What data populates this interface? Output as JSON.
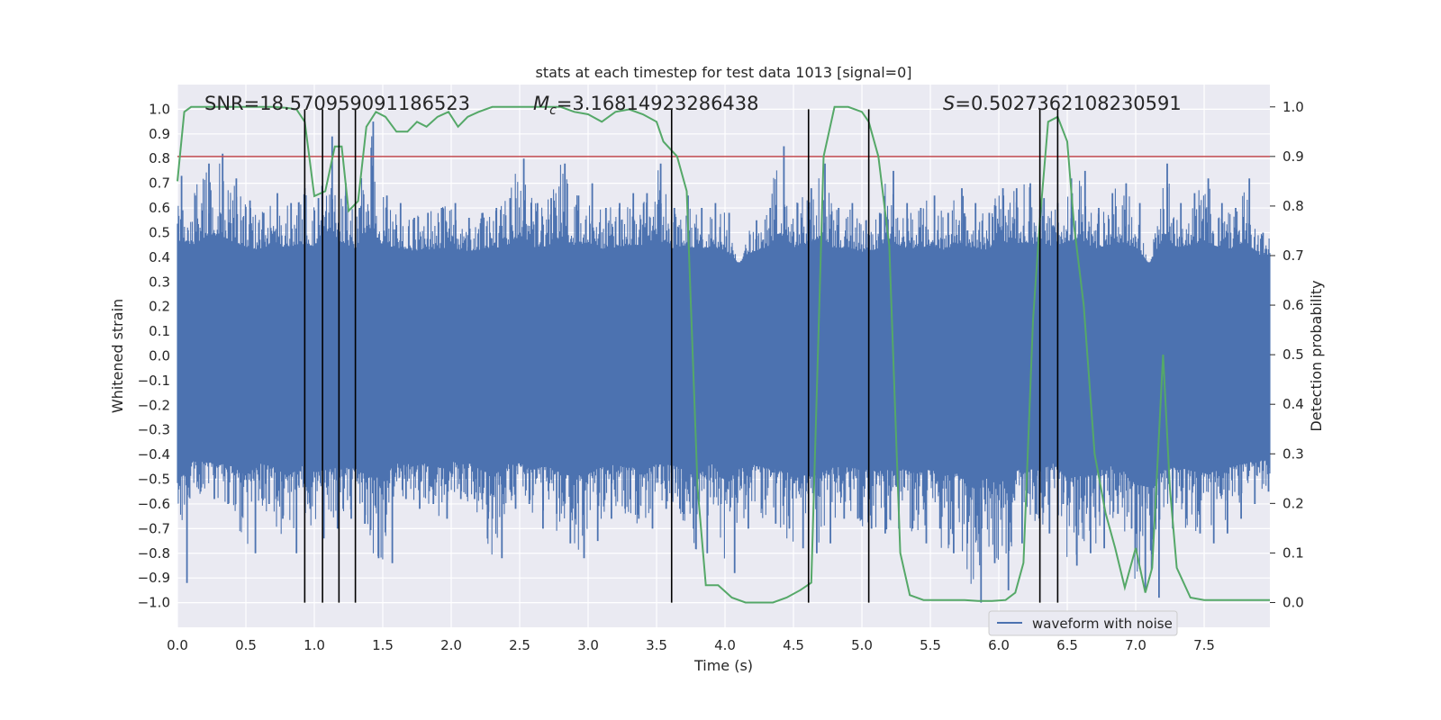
{
  "chart_data": {
    "type": "line",
    "title": "stats at each timestep for test data 1013 [signal=0]",
    "xlabel": "Time (s)",
    "ylabel": "Whitened strain",
    "y2label": "Detection probability",
    "xlim": [
      0.0,
      7.98
    ],
    "ylim": [
      -1.1,
      1.1
    ],
    "y2lim": [
      -0.05,
      1.045
    ],
    "xticks": [
      0.0,
      0.5,
      1.0,
      1.5,
      2.0,
      2.5,
      3.0,
      3.5,
      4.0,
      4.5,
      5.0,
      5.5,
      6.0,
      6.5,
      7.0,
      7.5
    ],
    "yticks": [
      -1.0,
      -0.9,
      -0.8,
      -0.7,
      -0.6,
      -0.5,
      -0.4,
      -0.3,
      -0.2,
      -0.1,
      0.0,
      0.1,
      0.2,
      0.3,
      0.4,
      0.5,
      0.6,
      0.7,
      0.8,
      0.9,
      1.0
    ],
    "y2ticks": [
      0.0,
      0.1,
      0.2,
      0.3,
      0.4,
      0.5,
      0.6,
      0.7,
      0.8,
      0.9,
      1.0
    ],
    "xtick_labels": [
      "0.0",
      "0.5",
      "1.0",
      "1.5",
      "2.0",
      "2.5",
      "3.0",
      "3.5",
      "4.0",
      "4.5",
      "5.0",
      "5.5",
      "6.0",
      "6.5",
      "7.0",
      "7.5"
    ],
    "ytick_labels": [
      "−1.0",
      "−0.9",
      "−0.8",
      "−0.7",
      "−0.6",
      "−0.5",
      "−0.4",
      "−0.3",
      "−0.2",
      "−0.1",
      "0.0",
      "0.1",
      "0.2",
      "0.3",
      "0.4",
      "0.5",
      "0.6",
      "0.7",
      "0.8",
      "0.9",
      "1.0"
    ],
    "y2tick_labels": [
      "0.0",
      "0.1",
      "0.2",
      "0.3",
      "0.4",
      "0.5",
      "0.6",
      "0.7",
      "0.8",
      "0.9",
      "1.0"
    ],
    "grid": true,
    "legend": {
      "position": "bottom-right",
      "entries": [
        "waveform with noise"
      ]
    },
    "annotations": {
      "snr": "SNR=18.570959091186523",
      "mc_symbol": "M",
      "mc_sub": "c",
      "mc_value": "=3.16814923286438",
      "s_symbol": "S",
      "s_value": "=0.5027362108230591"
    },
    "threshold": {
      "axis": "y2",
      "value": 0.9,
      "color": "#c44e52"
    },
    "vlines": {
      "x": [
        0.93,
        1.06,
        1.18,
        1.3,
        3.61,
        4.61,
        5.05,
        6.3,
        6.43
      ],
      "ymin": -1.0,
      "ymax": 1.0,
      "color": "#000000"
    },
    "series": [
      {
        "name": "waveform with noise",
        "axis": "y",
        "color": "#4c72b0",
        "envelope": {
          "x": [
            0.0,
            0.1,
            0.2,
            0.3,
            0.4,
            0.5,
            0.6,
            0.7,
            0.8,
            0.9,
            1.0,
            1.1,
            1.2,
            1.3,
            1.4,
            1.5,
            1.6,
            1.7,
            1.8,
            1.9,
            2.0,
            2.1,
            2.2,
            2.3,
            2.4,
            2.5,
            2.6,
            2.7,
            2.8,
            2.9,
            3.0,
            3.1,
            3.2,
            3.3,
            3.4,
            3.5,
            3.6,
            3.7,
            3.8,
            3.9,
            4.0,
            4.1,
            4.2,
            4.3,
            4.4,
            4.5,
            4.6,
            4.7,
            4.8,
            4.9,
            5.0,
            5.1,
            5.2,
            5.3,
            5.4,
            5.5,
            5.6,
            5.7,
            5.8,
            5.9,
            6.0,
            6.1,
            6.2,
            6.3,
            6.4,
            6.5,
            6.6,
            6.7,
            6.8,
            6.9,
            7.0,
            7.1,
            7.2,
            7.3,
            7.4,
            7.5,
            7.6,
            7.7,
            7.8,
            7.9
          ],
          "upper": [
            0.73,
            0.65,
            0.78,
            0.82,
            0.72,
            0.63,
            0.58,
            0.66,
            0.62,
            0.68,
            0.64,
            0.89,
            0.7,
            0.6,
            0.95,
            0.65,
            0.62,
            0.56,
            0.58,
            0.6,
            0.62,
            0.56,
            0.58,
            0.6,
            0.64,
            0.8,
            0.62,
            0.64,
            0.78,
            0.65,
            0.7,
            0.6,
            0.62,
            0.66,
            0.66,
            0.78,
            0.6,
            0.65,
            0.6,
            0.62,
            0.58,
            0.36,
            0.55,
            0.6,
            0.85,
            0.62,
            0.68,
            0.78,
            0.6,
            0.62,
            0.55,
            0.58,
            0.75,
            0.62,
            0.6,
            0.65,
            0.58,
            0.68,
            0.62,
            0.58,
            0.68,
            0.68,
            0.7,
            0.64,
            0.62,
            0.72,
            0.75,
            0.6,
            0.66,
            0.7,
            0.62,
            0.35,
            0.78,
            0.62,
            0.66,
            0.72,
            0.62,
            0.6,
            0.72,
            0.5
          ],
          "lower": [
            -0.92,
            -0.55,
            -0.58,
            -0.6,
            -0.65,
            -0.8,
            -0.6,
            -0.66,
            -0.8,
            -0.62,
            -0.74,
            -0.7,
            -0.66,
            -0.68,
            -0.82,
            -0.84,
            -0.58,
            -0.62,
            -0.6,
            -0.66,
            -0.58,
            -0.58,
            -0.66,
            -0.82,
            -0.62,
            -0.6,
            -0.7,
            -0.64,
            -0.76,
            -0.82,
            -0.75,
            -0.66,
            -0.62,
            -0.66,
            -0.7,
            -0.62,
            -0.62,
            -0.7,
            -0.8,
            -0.6,
            -0.88,
            -0.7,
            -0.62,
            -0.68,
            -0.7,
            -0.78,
            -0.8,
            -0.76,
            -0.66,
            -0.66,
            -0.7,
            -0.72,
            -0.7,
            -0.7,
            -0.76,
            -0.7,
            -0.8,
            -0.76,
            -1.0,
            -0.84,
            -0.95,
            -0.76,
            -0.64,
            -0.72,
            -0.6,
            -0.85,
            -0.8,
            -0.78,
            -0.64,
            -0.7,
            -0.95,
            -0.98,
            -0.7,
            -0.66,
            -0.72,
            -0.76,
            -0.72,
            -0.66,
            -0.6,
            -0.55
          ]
        }
      },
      {
        "name": "",
        "axis": "y2",
        "color": "#55a868",
        "x": [
          0.0,
          0.05,
          0.1,
          0.2,
          0.3,
          0.4,
          0.5,
          0.6,
          0.7,
          0.8,
          0.87,
          0.93,
          1.0,
          1.08,
          1.15,
          1.2,
          1.25,
          1.32,
          1.38,
          1.45,
          1.52,
          1.6,
          1.68,
          1.75,
          1.82,
          1.9,
          1.98,
          2.05,
          2.12,
          2.2,
          2.3,
          2.4,
          2.5,
          2.6,
          2.7,
          2.8,
          2.9,
          3.0,
          3.1,
          3.2,
          3.3,
          3.4,
          3.5,
          3.55,
          3.65,
          3.72,
          3.8,
          3.86,
          3.95,
          4.05,
          4.15,
          4.25,
          4.35,
          4.45,
          4.55,
          4.63,
          4.72,
          4.8,
          4.9,
          5.0,
          5.05,
          5.12,
          5.2,
          5.28,
          5.35,
          5.45,
          5.55,
          5.65,
          5.75,
          5.85,
          5.95,
          6.05,
          6.12,
          6.18,
          6.25,
          6.3,
          6.36,
          6.43,
          6.5,
          6.55,
          6.62,
          6.7,
          6.78,
          6.85,
          6.92,
          7.0,
          7.07,
          7.12,
          7.2,
          7.25,
          7.3,
          7.4,
          7.5,
          7.6,
          7.7,
          7.8,
          7.9,
          7.98
        ],
        "values": [
          0.85,
          0.99,
          1.0,
          1.0,
          1.0,
          1.0,
          1.0,
          1.0,
          1.0,
          0.998,
          0.995,
          0.97,
          0.82,
          0.83,
          0.92,
          0.92,
          0.79,
          0.81,
          0.96,
          0.99,
          0.98,
          0.95,
          0.95,
          0.97,
          0.96,
          0.98,
          0.99,
          0.96,
          0.98,
          0.99,
          1.0,
          1.0,
          1.0,
          1.0,
          1.0,
          1.0,
          0.99,
          0.985,
          0.97,
          0.99,
          0.995,
          0.985,
          0.97,
          0.93,
          0.9,
          0.83,
          0.23,
          0.035,
          0.035,
          0.01,
          0.0,
          0.0,
          0.0,
          0.01,
          0.025,
          0.04,
          0.9,
          1.0,
          1.0,
          0.99,
          0.97,
          0.9,
          0.72,
          0.1,
          0.015,
          0.005,
          0.005,
          0.005,
          0.005,
          0.003,
          0.003,
          0.005,
          0.02,
          0.08,
          0.57,
          0.77,
          0.97,
          0.98,
          0.93,
          0.76,
          0.6,
          0.3,
          0.18,
          0.11,
          0.03,
          0.11,
          0.02,
          0.07,
          0.5,
          0.23,
          0.07,
          0.01,
          0.005,
          0.005,
          0.005,
          0.005,
          0.005,
          0.005
        ]
      }
    ]
  }
}
